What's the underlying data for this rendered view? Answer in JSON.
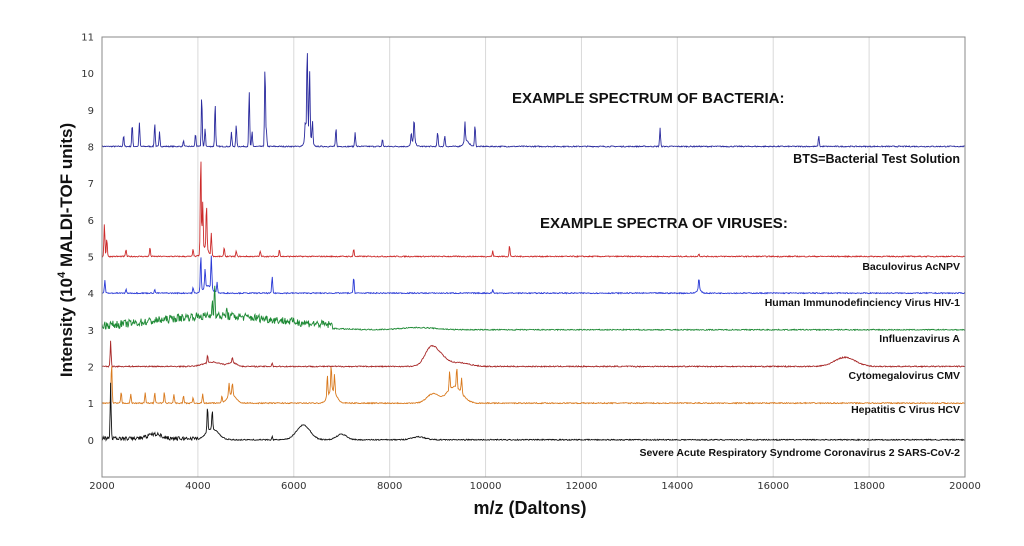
{
  "chart_data": {
    "type": "line",
    "title": "",
    "xlabel": "m/z (Daltons)",
    "ylabel_prefix": "Intensity (10",
    "ylabel_exp": "4",
    "ylabel_suffix": " MALDI-TOF units)",
    "xlim": [
      2000,
      20000
    ],
    "ylim": [
      -1,
      11
    ],
    "xticks": [
      "2000",
      "4000",
      "6000",
      "8000",
      "10000",
      "12000",
      "14000",
      "16000",
      "18000",
      "20000"
    ],
    "yticks": [
      "0",
      "1",
      "2",
      "3",
      "4",
      "5",
      "6",
      "7",
      "8",
      "9",
      "10",
      "11"
    ],
    "grid": true,
    "annotations": {
      "bacteria_heading": "EXAMPLE SPECTRUM OF BACTERIA:",
      "virus_heading": "EXAMPLE SPECTRA OF VIRUSES:"
    },
    "series": [
      {
        "name": "BTS=Bacterial Test Solution",
        "color": "#2b2b9e",
        "baseline": 8,
        "peaks": [
          [
            2450,
            0.3
          ],
          [
            2630,
            0.6
          ],
          [
            2780,
            0.65
          ],
          [
            3100,
            0.65
          ],
          [
            3200,
            0.4
          ],
          [
            3700,
            0.15
          ],
          [
            3950,
            0.35
          ],
          [
            4080,
            1.4
          ],
          [
            4150,
            0.5
          ],
          [
            4360,
            1.2
          ],
          [
            4700,
            0.4
          ],
          [
            4800,
            0.6
          ],
          [
            5070,
            1.5
          ],
          [
            5130,
            0.4
          ],
          [
            5400,
            2.2
          ],
          [
            5430,
            0.4
          ],
          [
            6240,
            0.5
          ],
          [
            6280,
            2.4
          ],
          [
            6330,
            1.8
          ],
          [
            6390,
            0.6
          ],
          [
            6880,
            0.5
          ],
          [
            7280,
            0.4
          ],
          [
            7850,
            0.2
          ],
          [
            8450,
            0.3
          ],
          [
            8510,
            0.6
          ],
          [
            9000,
            0.4
          ],
          [
            9150,
            0.3
          ],
          [
            9570,
            0.55
          ],
          [
            9780,
            0.6
          ],
          [
            13640,
            0.5
          ],
          [
            16950,
            0.3
          ]
        ],
        "bumps": [
          [
            6300,
            0.35,
            80
          ],
          [
            8500,
            0.15,
            60
          ],
          [
            9600,
            0.15,
            80
          ]
        ]
      },
      {
        "name": "Baculovirus AcNPV",
        "color": "#cc2a2a",
        "baseline": 5,
        "peaks": [
          [
            2050,
            0.9
          ],
          [
            2100,
            0.5
          ],
          [
            2500,
            0.2
          ],
          [
            3000,
            0.25
          ],
          [
            3900,
            0.2
          ],
          [
            4060,
            2.7
          ],
          [
            4100,
            1.3
          ],
          [
            4180,
            1.2
          ],
          [
            4280,
            0.6
          ],
          [
            4550,
            0.25
          ],
          [
            4800,
            0.15
          ],
          [
            5300,
            0.15
          ],
          [
            5700,
            0.2
          ],
          [
            7250,
            0.2
          ],
          [
            10150,
            0.15
          ],
          [
            10500,
            0.3
          ],
          [
            14450,
            0.08
          ]
        ],
        "bumps": [
          [
            4150,
            0.25,
            90
          ]
        ]
      },
      {
        "name": "Human Immunodefinciency Virus HIV-1",
        "color": "#2a3ad6",
        "baseline": 4,
        "peaks": [
          [
            2060,
            0.35
          ],
          [
            2500,
            0.1
          ],
          [
            3100,
            0.1
          ],
          [
            3900,
            0.15
          ],
          [
            4060,
            1.0
          ],
          [
            4150,
            0.5
          ],
          [
            4280,
            0.9
          ],
          [
            4400,
            0.3
          ],
          [
            5550,
            0.45
          ],
          [
            7250,
            0.45
          ],
          [
            10150,
            0.1
          ],
          [
            14450,
            0.3
          ]
        ],
        "bumps": [
          [
            4200,
            0.2,
            120
          ],
          [
            14450,
            0.1,
            60
          ]
        ]
      },
      {
        "name": "Influenzavirus A",
        "color": "#1e8a35",
        "baseline": 3,
        "peaks": [
          [
            4350,
            0.95
          ],
          [
            4300,
            0.4
          ],
          [
            4600,
            0.2
          ]
        ],
        "bumps": [
          [
            4100,
            0.25,
            1400
          ],
          [
            5500,
            0.1,
            1200
          ],
          [
            8600,
            0.06,
            500
          ]
        ],
        "noise": [
          2000,
          6800,
          0.22
        ]
      },
      {
        "name": "Cytomegalovirus CMV",
        "color": "#a82828",
        "baseline": 2,
        "peaks": [
          [
            2180,
            0.7
          ],
          [
            4200,
            0.2
          ],
          [
            4720,
            0.15
          ],
          [
            5550,
            0.1
          ]
        ],
        "bumps": [
          [
            4300,
            0.12,
            250
          ],
          [
            4720,
            0.1,
            120
          ],
          [
            8850,
            0.45,
            180
          ],
          [
            9050,
            0.25,
            200
          ],
          [
            9450,
            0.1,
            300
          ],
          [
            17500,
            0.25,
            300
          ]
        ]
      },
      {
        "name": "Hepatitis C Virus HCV",
        "color": "#d97a1e",
        "baseline": 1,
        "peaks": [
          [
            2200,
            1.1
          ],
          [
            2400,
            0.3
          ],
          [
            2600,
            0.25
          ],
          [
            2900,
            0.3
          ],
          [
            3100,
            0.3
          ],
          [
            3300,
            0.3
          ],
          [
            3500,
            0.25
          ],
          [
            3700,
            0.2
          ],
          [
            3900,
            0.15
          ],
          [
            4100,
            0.25
          ],
          [
            4500,
            0.2
          ],
          [
            4650,
            0.35
          ],
          [
            4720,
            0.3
          ],
          [
            6700,
            0.6
          ],
          [
            6780,
            0.7
          ],
          [
            6850,
            0.5
          ],
          [
            9250,
            0.5
          ],
          [
            9400,
            0.55
          ],
          [
            9500,
            0.4
          ]
        ],
        "bumps": [
          [
            4700,
            0.25,
            120
          ],
          [
            6800,
            0.35,
            120
          ],
          [
            8900,
            0.25,
            180
          ],
          [
            9350,
            0.45,
            220
          ]
        ]
      },
      {
        "name": "Severe Acute Respiratory Syndrome Coronavirus 2  SARS-CoV-2",
        "color": "#111111",
        "baseline": 0,
        "peaks": [
          [
            2180,
            1.5
          ],
          [
            4200,
            0.7
          ],
          [
            4300,
            0.5
          ],
          [
            5550,
            0.1
          ]
        ],
        "bumps": [
          [
            3100,
            0.12,
            200
          ],
          [
            4300,
            0.3,
            180
          ],
          [
            6200,
            0.4,
            200
          ],
          [
            7000,
            0.15,
            150
          ],
          [
            8600,
            0.08,
            200
          ]
        ],
        "noise": [
          2000,
          4000,
          0.1
        ]
      }
    ]
  }
}
